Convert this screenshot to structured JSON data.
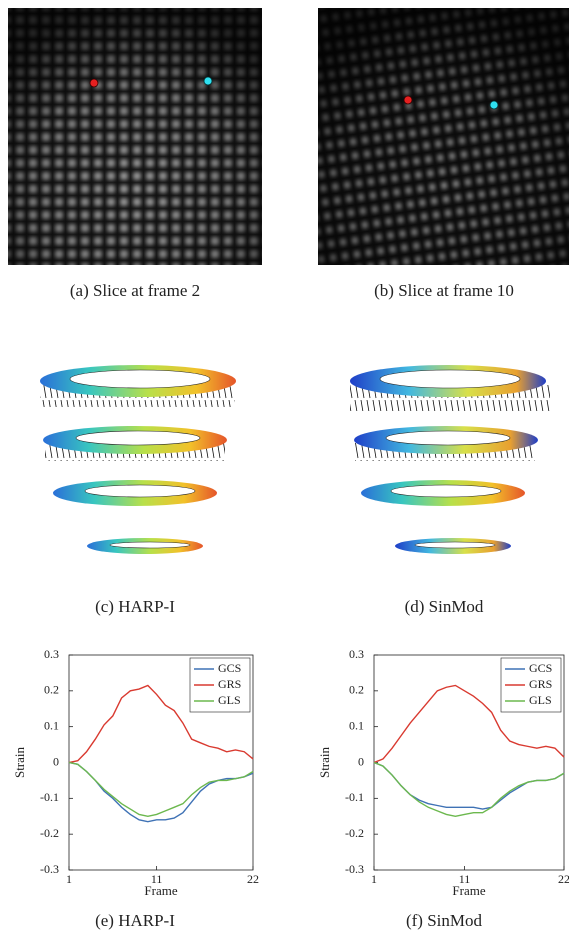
{
  "captions": [
    "(a) Slice at frame 2",
    "(b) Slice at frame 10",
    "(c) HARP-I",
    "(d) SinMod",
    "(e) HARP-I",
    "(f) SinMod"
  ],
  "chart_data": [
    {
      "type": "line",
      "x": [
        1,
        2,
        3,
        4,
        5,
        6,
        7,
        8,
        9,
        10,
        11,
        12,
        13,
        14,
        15,
        16,
        17,
        18,
        19,
        20,
        21,
        22
      ],
      "xlabel": "Frame",
      "ylabel": "Strain",
      "xlim": [
        1,
        22
      ],
      "xticks": [
        1,
        11,
        22
      ],
      "ylim": [
        -0.3,
        0.3
      ],
      "yticks": [
        -0.3,
        -0.2,
        -0.1,
        0,
        0.1,
        0.2,
        0.3
      ],
      "legend": "upper right",
      "series": [
        {
          "name": "GCS",
          "color": "#3f72b5",
          "values": [
            0,
            -0.005,
            -0.025,
            -0.05,
            -0.08,
            -0.1,
            -0.125,
            -0.145,
            -0.16,
            -0.165,
            -0.16,
            -0.16,
            -0.155,
            -0.14,
            -0.11,
            -0.08,
            -0.06,
            -0.05,
            -0.045,
            -0.045,
            -0.04,
            -0.03
          ]
        },
        {
          "name": "GRS",
          "color": "#d93a30",
          "values": [
            0,
            0.005,
            0.03,
            0.065,
            0.105,
            0.13,
            0.18,
            0.2,
            0.205,
            0.215,
            0.19,
            0.16,
            0.145,
            0.11,
            0.065,
            0.055,
            0.045,
            0.04,
            0.03,
            0.035,
            0.03,
            0.01
          ]
        },
        {
          "name": "GLS",
          "color": "#6cb84e",
          "values": [
            0,
            -0.005,
            -0.025,
            -0.05,
            -0.075,
            -0.095,
            -0.115,
            -0.13,
            -0.145,
            -0.15,
            -0.145,
            -0.135,
            -0.125,
            -0.115,
            -0.09,
            -0.07,
            -0.055,
            -0.05,
            -0.05,
            -0.045,
            -0.04,
            -0.025
          ]
        }
      ]
    },
    {
      "type": "line",
      "x": [
        1,
        2,
        3,
        4,
        5,
        6,
        7,
        8,
        9,
        10,
        11,
        12,
        13,
        14,
        15,
        16,
        17,
        18,
        19,
        20,
        21,
        22
      ],
      "xlabel": "Frame",
      "ylabel": "Strain",
      "xlim": [
        1,
        22
      ],
      "xticks": [
        1,
        11,
        22
      ],
      "ylim": [
        -0.3,
        0.3
      ],
      "yticks": [
        -0.3,
        -0.2,
        -0.1,
        0,
        0.1,
        0.2,
        0.3
      ],
      "legend": "upper right",
      "series": [
        {
          "name": "GCS",
          "color": "#3f72b5",
          "values": [
            0,
            -0.01,
            -0.035,
            -0.065,
            -0.09,
            -0.105,
            -0.115,
            -0.12,
            -0.125,
            -0.125,
            -0.125,
            -0.125,
            -0.13,
            -0.125,
            -0.105,
            -0.085,
            -0.07,
            -0.055,
            -0.05,
            -0.05,
            -0.045,
            -0.03
          ]
        },
        {
          "name": "GRS",
          "color": "#d93a30",
          "values": [
            0,
            0.01,
            0.04,
            0.075,
            0.11,
            0.14,
            0.17,
            0.2,
            0.21,
            0.215,
            0.2,
            0.185,
            0.165,
            0.14,
            0.09,
            0.06,
            0.05,
            0.045,
            0.04,
            0.045,
            0.04,
            0.015
          ]
        },
        {
          "name": "GLS",
          "color": "#6cb84e",
          "values": [
            0,
            -0.01,
            -0.035,
            -0.065,
            -0.09,
            -0.11,
            -0.125,
            -0.135,
            -0.145,
            -0.15,
            -0.145,
            -0.14,
            -0.14,
            -0.125,
            -0.1,
            -0.08,
            -0.065,
            -0.055,
            -0.05,
            -0.05,
            -0.045,
            -0.03
          ]
        }
      ]
    }
  ]
}
